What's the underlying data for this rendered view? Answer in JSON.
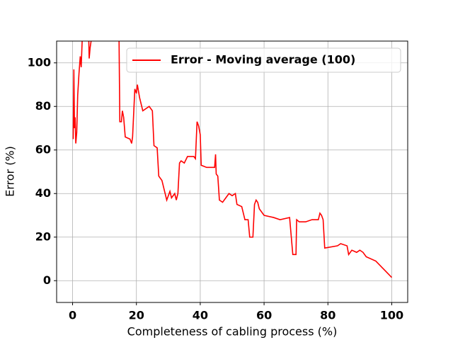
{
  "chart_data": {
    "type": "line",
    "x_label": "Completeness of cabling process (%)",
    "y_label": "Error (%)",
    "xlim": [
      -5,
      105
    ],
    "ylim": [
      -10,
      110
    ],
    "xticks": [
      0,
      20,
      40,
      60,
      80,
      100
    ],
    "yticks": [
      0,
      20,
      40,
      60,
      80,
      100
    ],
    "grid": true,
    "legend": "upper right",
    "x": [
      0.2,
      0.4,
      0.6,
      0.8,
      1,
      1.3,
      1.6,
      2,
      2.4,
      2.7,
      3,
      3.2,
      5,
      5.2,
      5.5,
      5.8,
      6,
      14.5,
      14.8,
      15.3,
      15.6,
      16,
      16.5,
      18,
      18.5,
      18.8,
      19.5,
      20,
      20.3,
      21,
      22,
      24,
      25,
      25.5,
      26.5,
      27,
      28,
      28.5,
      29,
      29.5,
      30,
      30.5,
      31,
      32,
      32.5,
      33,
      33.5,
      34,
      35,
      36,
      38,
      38.5,
      39,
      39.5,
      40,
      40.3,
      42,
      44.5,
      44.8,
      45,
      45.5,
      46,
      47,
      48,
      49,
      50,
      51,
      51.5,
      53,
      53.5,
      54,
      55,
      55.5,
      56.5,
      57,
      57.5,
      58,
      58.5,
      60,
      63,
      65,
      68,
      69,
      70,
      70.2,
      71,
      73,
      75,
      77,
      77.5,
      78,
      78.5,
      79,
      83,
      84,
      86,
      86.5,
      87.5,
      89,
      90,
      91,
      92,
      95,
      97,
      99,
      100
    ],
    "series": [
      {
        "name": "Error - Moving average (100)",
        "color": "#ff0000",
        "values": [
          65,
          97,
          70,
          75,
          63,
          68,
          85,
          95,
          103,
          98,
          110,
          115,
          115,
          102,
          107,
          110,
          120,
          120,
          73,
          73,
          78,
          75,
          66,
          65,
          63,
          66,
          88,
          86,
          90,
          84,
          78,
          80,
          78,
          62,
          61,
          48,
          46,
          43,
          40,
          37,
          39,
          41,
          38,
          40,
          37,
          40,
          54,
          55,
          54,
          57,
          57,
          56,
          73,
          71,
          67,
          53,
          52,
          52,
          58,
          49,
          48,
          37,
          36,
          38,
          40,
          39,
          40,
          35,
          34,
          31,
          28,
          28,
          20,
          20,
          35,
          37,
          36,
          33,
          30,
          29,
          28,
          29,
          12,
          12,
          28,
          27,
          27,
          28,
          28,
          31,
          30,
          28,
          15,
          16,
          17,
          16,
          12,
          14,
          13,
          14,
          13,
          11,
          9,
          6,
          3,
          1.5
        ]
      }
    ]
  }
}
